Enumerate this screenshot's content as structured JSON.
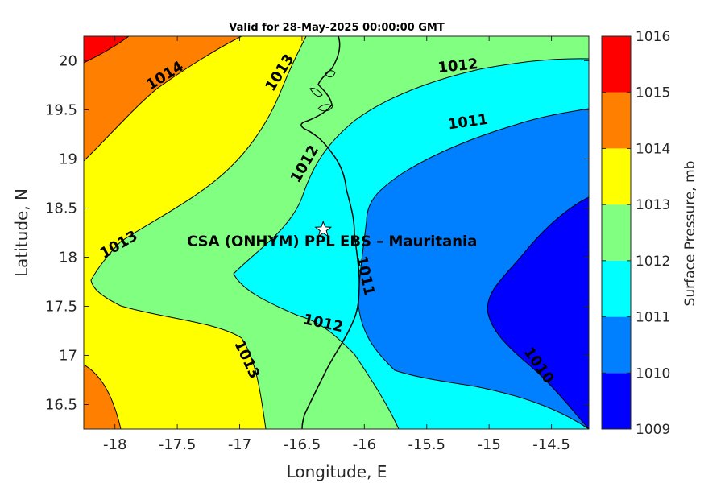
{
  "title": "Valid for 28-May-2025 00:00:00 GMT",
  "site_label": "CSA (ONHYM) PPL EBS  – Mauritania",
  "colorbar": {
    "label": "Surface Pressure, mb",
    "levels": [
      {
        "value": "1009",
        "color": "#0000ff"
      },
      {
        "value": "1010",
        "color": "#0080ff"
      },
      {
        "value": "1011",
        "color": "#00ffff"
      },
      {
        "value": "1012",
        "color": "#80ff80"
      },
      {
        "value": "1013",
        "color": "#ffff00"
      },
      {
        "value": "1014",
        "color": "#ff8000"
      },
      {
        "value": "1015",
        "color": "#ff0000"
      },
      {
        "value": "1016",
        "color": "#800000"
      }
    ]
  },
  "chart_data": {
    "type": "filled-contour-map",
    "xlabel": "Longitude, E",
    "ylabel": "Latitude, N",
    "xlim": [
      -18.25,
      -14.2
    ],
    "ylim": [
      16.25,
      20.25
    ],
    "xticks": [
      "-18",
      "-17.5",
      "-17",
      "-16.5",
      "-16",
      "-15.5",
      "-15",
      "-14.5"
    ],
    "xtick_values": [
      -18,
      -17.5,
      -17,
      -16.5,
      -16,
      -15.5,
      -15,
      -14.5
    ],
    "yticks": [
      "16.5",
      "17",
      "17.5",
      "18",
      "18.5",
      "19",
      "19.5",
      "20"
    ],
    "ytick_values": [
      16.5,
      17,
      17.5,
      18,
      18.5,
      19,
      19.5,
      20
    ],
    "site": {
      "lon": -16.33,
      "lat": 18.28
    },
    "contour_labels": [
      {
        "text": "1014",
        "lon": -17.6,
        "lat": 19.85
      },
      {
        "text": "1013",
        "lon": -16.68,
        "lat": 19.88
      },
      {
        "text": "1012",
        "lon": -15.25,
        "lat": 19.95
      },
      {
        "text": "1011",
        "lon": -15.17,
        "lat": 19.38
      },
      {
        "text": "1012",
        "lon": -16.48,
        "lat": 18.95
      },
      {
        "text": "1013",
        "lon": -17.97,
        "lat": 18.13
      },
      {
        "text": "1011",
        "lon": -15.99,
        "lat": 17.81
      },
      {
        "text": "1012",
        "lon": -16.33,
        "lat": 17.33
      },
      {
        "text": "1013",
        "lon": -16.94,
        "lat": 16.96
      },
      {
        "text": "1010",
        "lon": -14.6,
        "lat": 16.9
      }
    ]
  }
}
